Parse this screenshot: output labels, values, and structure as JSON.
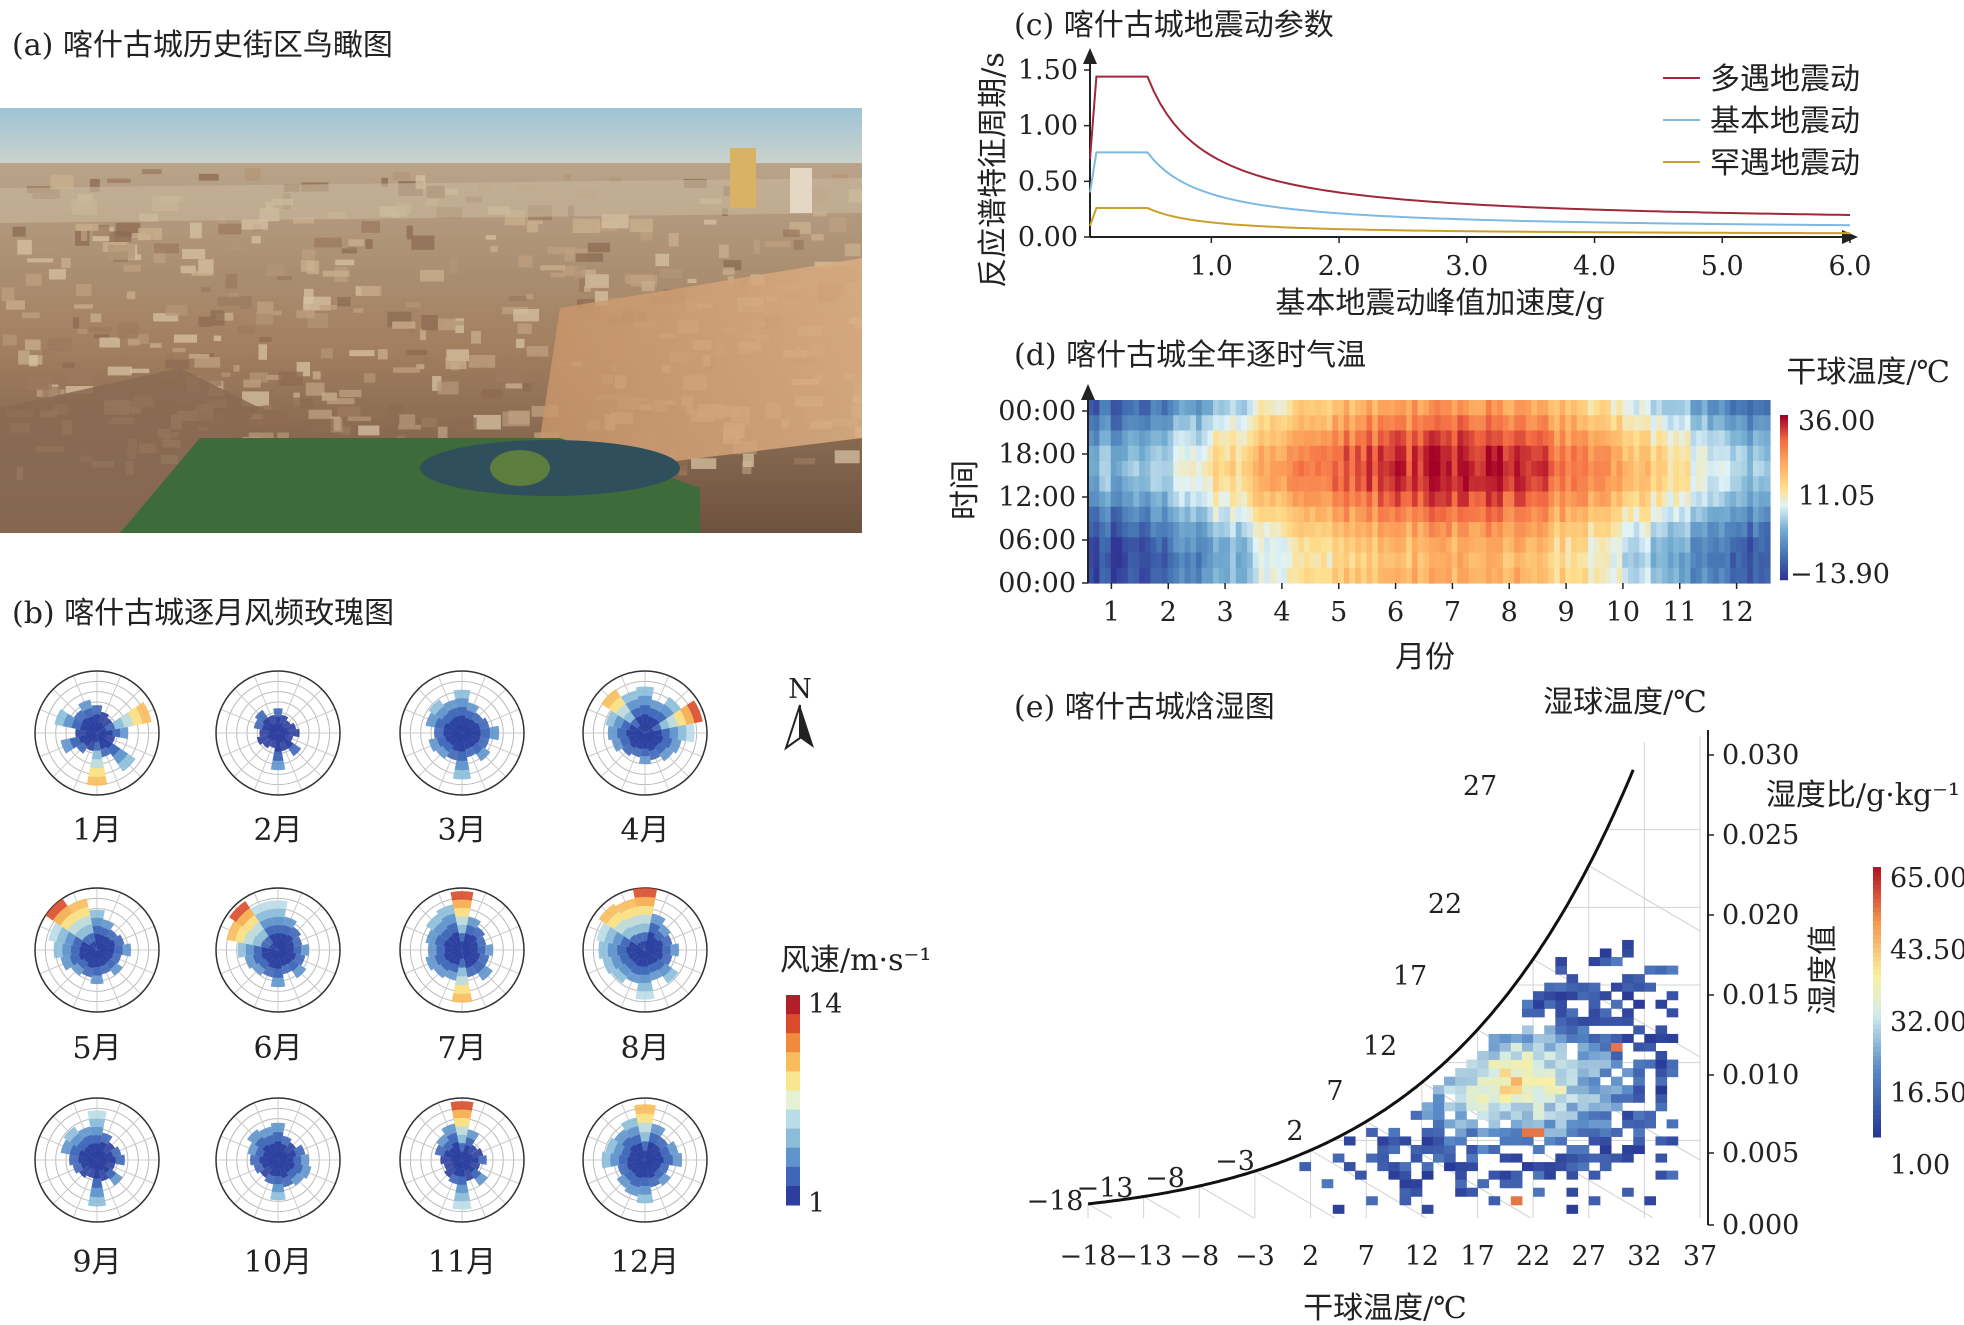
{
  "panels": {
    "a_title": "(a) 喀什古城历史街区鸟瞰图",
    "b_title": "(b) 喀什古城逐月风频玫瑰图",
    "c_title": "(c) 喀什古城地震动参数",
    "d_title": "(d) 喀什古城全年逐时气温",
    "e_title": "(e) 喀什古城焓湿图"
  },
  "chart_data": [
    {
      "id": "wind-rose",
      "type": "polar-bar",
      "months": [
        "1月",
        "2月",
        "3月",
        "4月",
        "5月",
        "6月",
        "7月",
        "8月",
        "9月",
        "10月",
        "11月",
        "12月"
      ],
      "north_label": "N",
      "colorbar": {
        "title": "风速/m·s⁻¹",
        "min_label": "1",
        "max_label": "14",
        "min": 1,
        "max": 14,
        "colors": [
          "#2c3f9e",
          "#3f66b8",
          "#5f93cc",
          "#8bbcd9",
          "#b9dce6",
          "#e5f1d3",
          "#f9e68f",
          "#f8bc5c",
          "#f08a3c",
          "#d94b2c",
          "#b41d2a"
        ]
      },
      "petals": [
        [
          0.45,
          0.35,
          0.3,
          0.9,
          0.5,
          0.3,
          0.75,
          0.4,
          0.85,
          0.3,
          0.4,
          0.6,
          0.35,
          0.7,
          0.45,
          0.55
        ],
        [
          0.4,
          0.3,
          0.25,
          0.3,
          0.35,
          0.25,
          0.45,
          0.3,
          0.6,
          0.25,
          0.3,
          0.35,
          0.3,
          0.4,
          0.45,
          0.3
        ],
        [
          0.7,
          0.5,
          0.4,
          0.45,
          0.6,
          0.45,
          0.55,
          0.4,
          0.75,
          0.45,
          0.5,
          0.55,
          0.45,
          0.6,
          0.65,
          0.55
        ],
        [
          0.75,
          0.55,
          0.7,
          0.95,
          0.8,
          0.6,
          0.55,
          0.45,
          0.5,
          0.4,
          0.45,
          0.55,
          0.6,
          0.65,
          0.85,
          0.7
        ],
        [
          0.65,
          0.5,
          0.4,
          0.45,
          0.55,
          0.4,
          0.5,
          0.4,
          0.55,
          0.45,
          0.5,
          0.6,
          0.7,
          0.8,
          1.0,
          0.85
        ],
        [
          0.8,
          0.55,
          0.45,
          0.4,
          0.5,
          0.45,
          0.55,
          0.4,
          0.6,
          0.45,
          0.5,
          0.55,
          0.65,
          0.85,
          0.95,
          0.8
        ],
        [
          0.95,
          0.55,
          0.45,
          0.4,
          0.5,
          0.45,
          0.6,
          0.45,
          0.85,
          0.5,
          0.55,
          0.6,
          0.55,
          0.6,
          0.7,
          0.75
        ],
        [
          1.0,
          0.6,
          0.5,
          0.45,
          0.55,
          0.45,
          0.65,
          0.5,
          0.8,
          0.55,
          0.65,
          0.7,
          0.75,
          0.8,
          0.9,
          0.85
        ],
        [
          0.8,
          0.45,
          0.35,
          0.4,
          0.45,
          0.3,
          0.5,
          0.35,
          0.75,
          0.3,
          0.35,
          0.4,
          0.45,
          0.6,
          0.65,
          0.55
        ],
        [
          0.6,
          0.4,
          0.35,
          0.45,
          0.5,
          0.55,
          0.5,
          0.45,
          0.65,
          0.4,
          0.35,
          0.4,
          0.45,
          0.5,
          0.6,
          0.55
        ],
        [
          0.95,
          0.5,
          0.3,
          0.35,
          0.4,
          0.3,
          0.5,
          0.35,
          0.8,
          0.4,
          0.35,
          0.3,
          0.35,
          0.45,
          0.5,
          0.6
        ],
        [
          0.9,
          0.6,
          0.45,
          0.55,
          0.6,
          0.4,
          0.5,
          0.45,
          0.7,
          0.6,
          0.55,
          0.45,
          0.7,
          0.65,
          0.6,
          0.7
        ]
      ]
    },
    {
      "id": "seismic",
      "type": "line",
      "xlabel": "基本地震动峰值加速度/g",
      "ylabel": "反应谱特征周期/s",
      "xticks": [
        "1.0",
        "2.0",
        "3.0",
        "4.0",
        "5.0",
        "6.0"
      ],
      "yticks": [
        "0.00",
        "0.50",
        "1.00",
        "1.50"
      ],
      "xlim": [
        0.05,
        6.0
      ],
      "ylim": [
        0,
        1.5
      ],
      "series": [
        {
          "name": "多遇地震动",
          "color": "#a0283c",
          "plateau": 1.44,
          "x1": 0.1,
          "x2": 0.5,
          "start": 0.7,
          "end": 0.12
        },
        {
          "name": "基本地震动",
          "color": "#7fb8e0",
          "plateau": 0.76,
          "x1": 0.1,
          "x2": 0.5,
          "start": 0.4,
          "end": 0.065
        },
        {
          "name": "罕遇地震动",
          "color": "#c8a02a",
          "plateau": 0.26,
          "x1": 0.1,
          "x2": 0.5,
          "start": 0.1,
          "end": 0.02
        }
      ]
    },
    {
      "id": "hourly-temperature",
      "type": "heatmap",
      "xlabel": "月份",
      "ylabel": "时间",
      "xticks": [
        "1",
        "2",
        "3",
        "4",
        "5",
        "6",
        "7",
        "8",
        "9",
        "10",
        "11",
        "12"
      ],
      "yticks": [
        "00:00",
        "06:00",
        "12:00",
        "18:00",
        "00:00"
      ],
      "colorbar": {
        "title": "干球温度/℃",
        "max_label": "36.00",
        "mid_label": "11.05",
        "min_label": "−13.90",
        "min": -13.9,
        "max": 36.0
      },
      "monthly_mean": [
        -5,
        1,
        9,
        17,
        22,
        26,
        27,
        26,
        21,
        13,
        5,
        -2
      ],
      "diurnal_amplitude": 7
    },
    {
      "id": "psychrometric",
      "type": "scatter-heatmap",
      "xlabel": "干球温度/℃",
      "y2label": "湿度比/g·kg⁻¹",
      "top_label": "湿球温度/℃",
      "xticks": [
        "−18",
        "−13",
        "−8",
        "−3",
        "2",
        "7",
        "12",
        "17",
        "22",
        "27",
        "32",
        "37"
      ],
      "yticks": [
        "0.000",
        "0.005",
        "0.010",
        "0.015",
        "0.020",
        "0.025",
        "0.030"
      ],
      "wetbulb_labels": [
        "−18",
        "−13",
        "−8",
        "−3",
        "2",
        "7",
        "12",
        "17",
        "22",
        "27"
      ],
      "colorbar": {
        "title": "湿度值",
        "ticks": [
          "65.00",
          "43.50",
          "32.00",
          "16.50",
          "1.00"
        ]
      },
      "xlim": [
        -18,
        37
      ],
      "ylim": [
        0,
        0.03
      ]
    }
  ],
  "photo": {
    "description_color_sky": "#aeccd9"
  }
}
